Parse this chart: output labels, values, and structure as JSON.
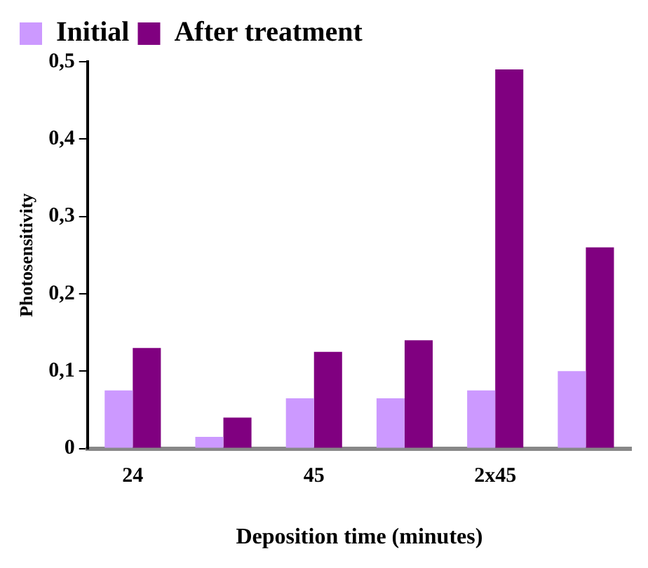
{
  "chart_data": {
    "type": "bar",
    "xlabel": "Deposition time (minutes)",
    "ylabel": "Photosensitivity",
    "categories": [
      "24",
      null,
      "45",
      null,
      "2x45",
      null
    ],
    "series": [
      {
        "name": "Initial",
        "color": "#cc99ff",
        "values": [
          0.075,
          0.015,
          0.065,
          0.065,
          0.075,
          0.1
        ]
      },
      {
        "name": "After treatment",
        "color": "#800080",
        "values": [
          0.13,
          0.04,
          0.125,
          0.14,
          0.49,
          0.26
        ]
      }
    ],
    "ylim": [
      0,
      0.5
    ],
    "yticks": [
      {
        "value": 0,
        "label": "0"
      },
      {
        "value": 0.1,
        "label": "0,1"
      },
      {
        "value": 0.2,
        "label": "0,2"
      },
      {
        "value": 0.3,
        "label": "0,3"
      },
      {
        "value": 0.4,
        "label": "0,4"
      },
      {
        "value": 0.5,
        "label": "0,5"
      }
    ],
    "grid": false,
    "legend": "top left"
  }
}
